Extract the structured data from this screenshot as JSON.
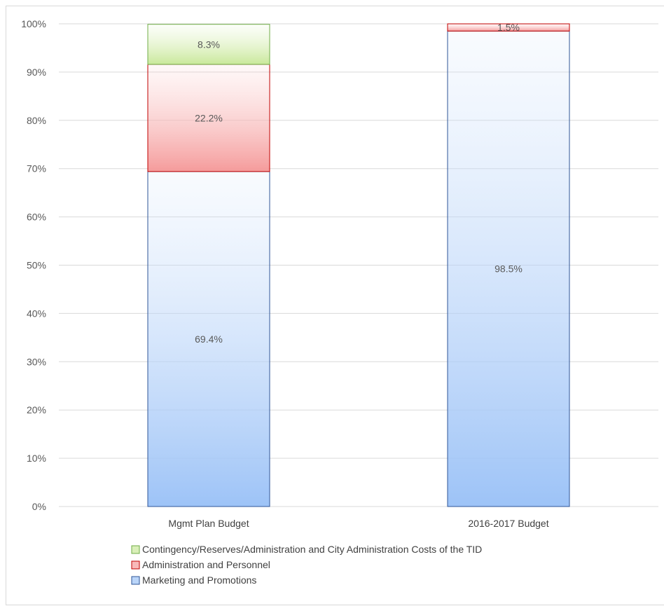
{
  "chart_data": {
    "type": "bar",
    "stacked": true,
    "categories": [
      "Mgmt Plan Budget",
      "2016-2017 Budget"
    ],
    "series": [
      {
        "name": "Marketing and Promotions",
        "values": [
          69.4,
          98.5
        ],
        "labels": [
          "69.4%",
          "98.5%"
        ],
        "color": "#9dc3f7",
        "border": "#2f5597"
      },
      {
        "name": "Administration and Personnel",
        "values": [
          22.2,
          1.5
        ],
        "labels": [
          "22.2%",
          "1.5%"
        ],
        "color": "#f59b9b",
        "border": "#c00000"
      },
      {
        "name": "Contingency/Reserves/Administration and City Administration Costs of the TID",
        "values": [
          8.3,
          0
        ],
        "labels": [
          "8.3%",
          ""
        ],
        "color": "#c9e89a",
        "border": "#70ad47"
      }
    ],
    "ylim": [
      0,
      100
    ],
    "yticks": [
      "0%",
      "10%",
      "20%",
      "30%",
      "40%",
      "50%",
      "60%",
      "70%",
      "80%",
      "90%",
      "100%"
    ],
    "grid": true,
    "legend_position": "bottom-left",
    "legend_order": [
      2,
      1,
      0
    ]
  }
}
